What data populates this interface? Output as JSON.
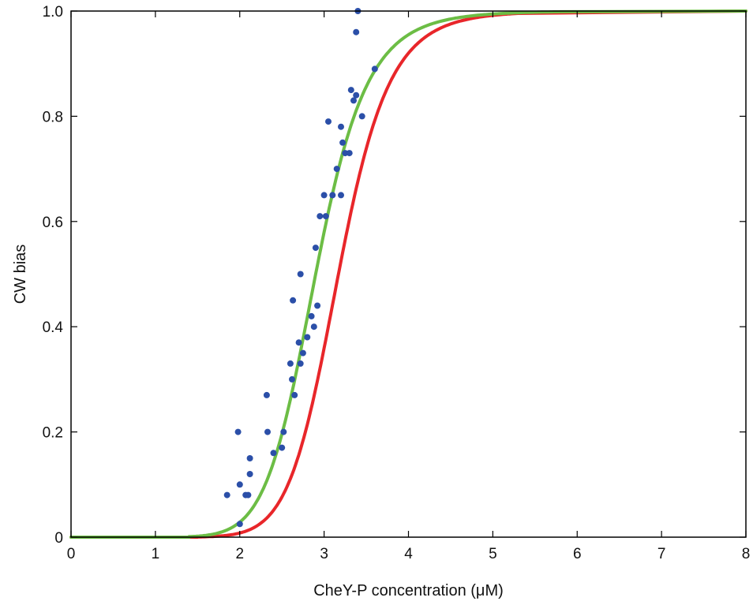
{
  "chart_data": {
    "type": "scatter",
    "title": "",
    "xlabel": "CheY-P concentration (μM)",
    "ylabel": "CW bias",
    "xlim": [
      0,
      8
    ],
    "ylim": [
      0,
      1
    ],
    "xticks": [
      0,
      1,
      2,
      3,
      4,
      5,
      6,
      7,
      8
    ],
    "yticks": [
      0,
      0.2,
      0.4,
      0.6,
      0.8,
      1.0
    ],
    "xtick_labels": [
      "0",
      "1",
      "2",
      "3",
      "4",
      "5",
      "6",
      "7",
      "8"
    ],
    "ytick_labels": [
      "0",
      "0.2",
      "0.4",
      "0.6",
      "0.8",
      "1.0"
    ],
    "grid": false,
    "series": [
      {
        "kind": "scatter",
        "color": "#2b4fa8",
        "points": [
          [
            1.85,
            0.08
          ],
          [
            1.98,
            0.2
          ],
          [
            2.0,
            0.1
          ],
          [
            2.0,
            0.025
          ],
          [
            2.07,
            0.08
          ],
          [
            2.1,
            0.08
          ],
          [
            2.12,
            0.12
          ],
          [
            2.12,
            0.15
          ],
          [
            2.32,
            0.27
          ],
          [
            2.33,
            0.2
          ],
          [
            2.4,
            0.16
          ],
          [
            2.5,
            0.17
          ],
          [
            2.52,
            0.2
          ],
          [
            2.6,
            0.33
          ],
          [
            2.62,
            0.3
          ],
          [
            2.63,
            0.45
          ],
          [
            2.65,
            0.27
          ],
          [
            2.7,
            0.37
          ],
          [
            2.72,
            0.5
          ],
          [
            2.72,
            0.33
          ],
          [
            2.75,
            0.35
          ],
          [
            2.8,
            0.38
          ],
          [
            2.85,
            0.42
          ],
          [
            2.88,
            0.4
          ],
          [
            2.9,
            0.55
          ],
          [
            2.92,
            0.44
          ],
          [
            2.95,
            0.61
          ],
          [
            3.0,
            0.65
          ],
          [
            3.02,
            0.61
          ],
          [
            3.05,
            0.79
          ],
          [
            3.1,
            0.65
          ],
          [
            3.15,
            0.7
          ],
          [
            3.2,
            0.65
          ],
          [
            3.2,
            0.78
          ],
          [
            3.22,
            0.75
          ],
          [
            3.25,
            0.73
          ],
          [
            3.3,
            0.73
          ],
          [
            3.32,
            0.85
          ],
          [
            3.35,
            0.83
          ],
          [
            3.38,
            0.84
          ],
          [
            3.38,
            0.96
          ],
          [
            3.4,
            1.0
          ],
          [
            3.45,
            0.8
          ],
          [
            3.6,
            0.89
          ]
        ]
      },
      {
        "kind": "line",
        "color": "#e8262a",
        "K": 3.17,
        "n": 10.5,
        "x_start": 1.5,
        "x_end": 5.3
      },
      {
        "kind": "line",
        "color": "#6cbd45",
        "K": 2.9,
        "n": 9.5,
        "x_start": 1.4,
        "x_end": 5.8
      }
    ]
  }
}
